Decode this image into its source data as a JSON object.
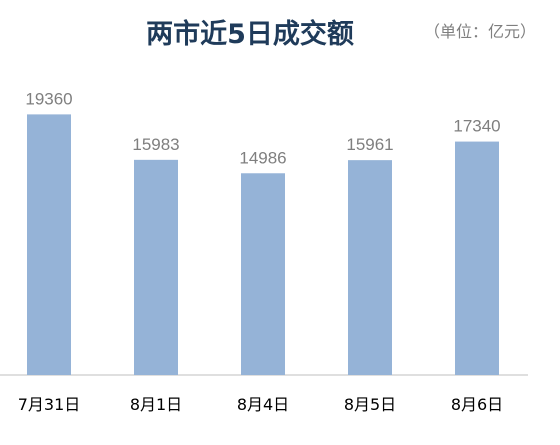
{
  "chart_data": {
    "type": "bar",
    "title": "两市近5日成交额",
    "unit_note": "（单位：亿元）",
    "categories": [
      "7月31日",
      "8月1日",
      "8月4日",
      "8月5日",
      "8月6日"
    ],
    "values": [
      19360,
      15983,
      14986,
      15961,
      17340
    ],
    "bar_color": "#95b3d7",
    "title_color": "#1f3b5a",
    "label_color": "#7f7f7f",
    "ylim": [
      0,
      20800
    ],
    "grid": false,
    "data_labels": true
  }
}
